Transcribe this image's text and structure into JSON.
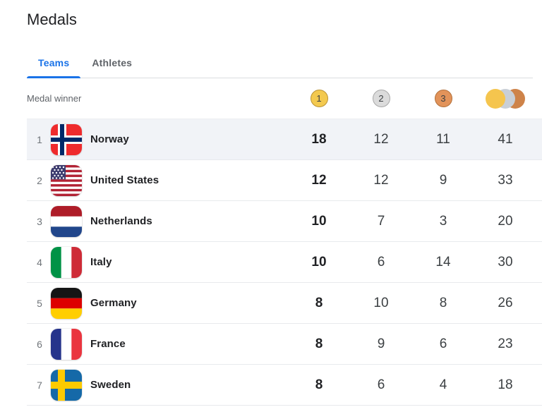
{
  "page": {
    "title": "Medals"
  },
  "tabs": {
    "teams": {
      "label": "Teams",
      "active": true
    },
    "athletes": {
      "label": "Athletes",
      "active": false
    }
  },
  "table": {
    "header_label": "Medal winner",
    "medal_icons": {
      "gold_label": "1",
      "silver_label": "2",
      "bronze_label": "3",
      "total": "overlapping gold-silver-bronze medals"
    },
    "rows": [
      {
        "rank": "1",
        "country": "Norway",
        "flag": "norway",
        "gold": "18",
        "silver": "12",
        "bronze": "11",
        "total": "41",
        "highlighted": true
      },
      {
        "rank": "2",
        "country": "United States",
        "flag": "united-states",
        "gold": "12",
        "silver": "12",
        "bronze": "9",
        "total": "33",
        "highlighted": false
      },
      {
        "rank": "3",
        "country": "Netherlands",
        "flag": "netherlands",
        "gold": "10",
        "silver": "7",
        "bronze": "3",
        "total": "20",
        "highlighted": false
      },
      {
        "rank": "4",
        "country": "Italy",
        "flag": "italy",
        "gold": "10",
        "silver": "6",
        "bronze": "14",
        "total": "30",
        "highlighted": false
      },
      {
        "rank": "5",
        "country": "Germany",
        "flag": "germany",
        "gold": "8",
        "silver": "10",
        "bronze": "8",
        "total": "26",
        "highlighted": false
      },
      {
        "rank": "6",
        "country": "France",
        "flag": "france",
        "gold": "8",
        "silver": "9",
        "bronze": "6",
        "total": "23",
        "highlighted": false
      },
      {
        "rank": "7",
        "country": "Sweden",
        "flag": "sweden",
        "gold": "8",
        "silver": "6",
        "bronze": "4",
        "total": "18",
        "highlighted": false
      }
    ]
  },
  "colors": {
    "accent_blue": "#1a73e8",
    "gold": "#F3C94F",
    "gold_border": "#BB9334",
    "silver": "#DBDBDB",
    "silver_border": "#A8A8A8",
    "bronze": "#E2935A",
    "bronze_border": "#B2703A",
    "row_highlight": "#F1F3F7",
    "divider": "#e8eaed"
  }
}
